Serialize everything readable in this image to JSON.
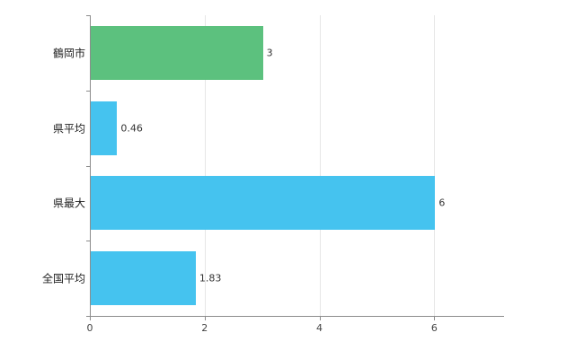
{
  "chart_data": {
    "type": "bar",
    "orientation": "horizontal",
    "title": "",
    "categories": [
      "鶴岡市",
      "県平均",
      "県最大",
      "全国平均"
    ],
    "values": [
      3,
      0.46,
      6,
      1.83
    ],
    "value_labels": [
      "3",
      "0.46",
      "6",
      "1.83"
    ],
    "series_colors": [
      "#5cc17e",
      "#45c3ef",
      "#45c3ef",
      "#45c3ef"
    ],
    "xlim": [
      0,
      7.2
    ],
    "x_ticks": [
      0,
      2,
      4,
      6
    ],
    "x_tick_labels": [
      "0",
      "2",
      "4",
      "6"
    ],
    "grid": true,
    "legend": "none",
    "axis_color": "#8c8c8c",
    "gridline_color": "#e6e6e6"
  }
}
